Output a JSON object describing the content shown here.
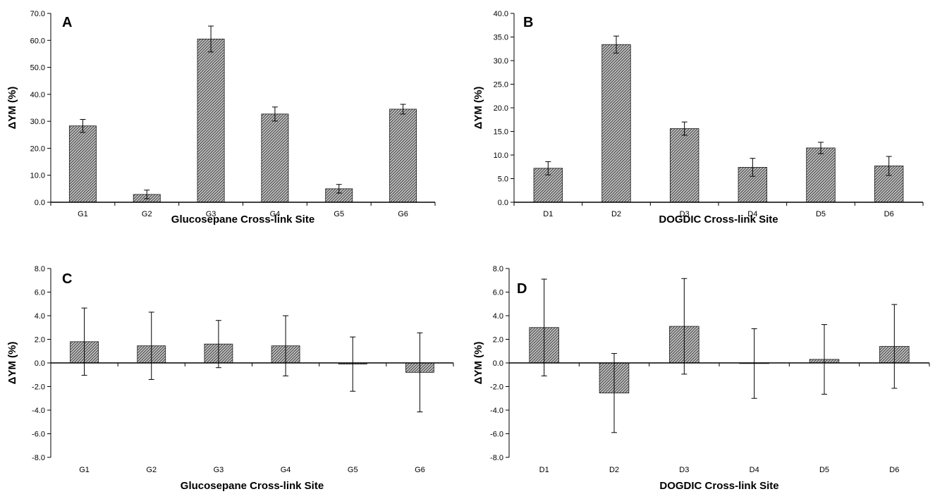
{
  "chart_data": [
    {
      "type": "bar",
      "panel_label": "A",
      "categories": [
        "G1",
        "G2",
        "G3",
        "G4",
        "G5",
        "G6"
      ],
      "values": [
        28.3,
        2.9,
        60.5,
        32.7,
        5.0,
        34.5
      ],
      "errors": [
        2.4,
        1.6,
        4.8,
        2.6,
        1.6,
        1.8
      ],
      "xlabel": "Glucosepane Cross-link Site",
      "ylabel": "ΔYM (%)",
      "ylim": [
        0,
        70
      ],
      "yticks": [
        "0.0",
        "10.0",
        "20.0",
        "30.0",
        "40.0",
        "50.0",
        "60.0",
        "70.0"
      ],
      "grid": false,
      "legend": "none"
    },
    {
      "type": "bar",
      "panel_label": "B",
      "categories": [
        "D1",
        "D2",
        "D3",
        "D4",
        "D5",
        "D6"
      ],
      "values": [
        7.2,
        33.4,
        15.6,
        7.4,
        11.5,
        7.7
      ],
      "errors": [
        1.4,
        1.8,
        1.4,
        1.9,
        1.2,
        2.0
      ],
      "xlabel": "DOGDIC Cross-link Site",
      "ylabel": "ΔYM (%)",
      "ylim": [
        0,
        40
      ],
      "yticks": [
        "0.0",
        "5.0",
        "10.0",
        "15.0",
        "20.0",
        "25.0",
        "30.0",
        "35.0",
        "40.0"
      ],
      "grid": false,
      "legend": "none"
    },
    {
      "type": "bar",
      "panel_label": "C",
      "categories": [
        "G1",
        "G2",
        "G3",
        "G4",
        "G5",
        "G6"
      ],
      "values": [
        1.8,
        1.45,
        1.6,
        1.45,
        -0.1,
        -0.8
      ],
      "errors": [
        2.85,
        2.85,
        2.0,
        2.55,
        2.3,
        3.35
      ],
      "xlabel": "Glucosepane Cross-link Site",
      "ylabel": "ΔYM (%)",
      "ylim": [
        -8,
        8
      ],
      "yticks": [
        "-8.0",
        "-6.0",
        "-4.0",
        "-2.0",
        "0.0",
        "2.0",
        "4.0",
        "6.0",
        "8.0"
      ],
      "grid": false,
      "legend": "none"
    },
    {
      "type": "bar",
      "panel_label": "D",
      "categories": [
        "D1",
        "D2",
        "D3",
        "D4",
        "D5",
        "D6"
      ],
      "values": [
        3.0,
        -2.55,
        3.1,
        -0.05,
        0.3,
        1.4
      ],
      "errors": [
        4.1,
        3.35,
        4.05,
        2.95,
        2.95,
        3.55
      ],
      "xlabel": "DOGDIC Cross-link Site",
      "ylabel": "ΔYM (%)",
      "ylim": [
        -8,
        8
      ],
      "yticks": [
        "-8.0",
        "-6.0",
        "-4.0",
        "-2.0",
        "0.0",
        "2.0",
        "4.0",
        "6.0",
        "8.0"
      ],
      "grid": false,
      "legend": "none"
    }
  ],
  "colors": {
    "bar_edge": "#1a1a1a",
    "hatch": "#444444",
    "bar_bg": "#bdbdbd",
    "axis": "#000000"
  }
}
